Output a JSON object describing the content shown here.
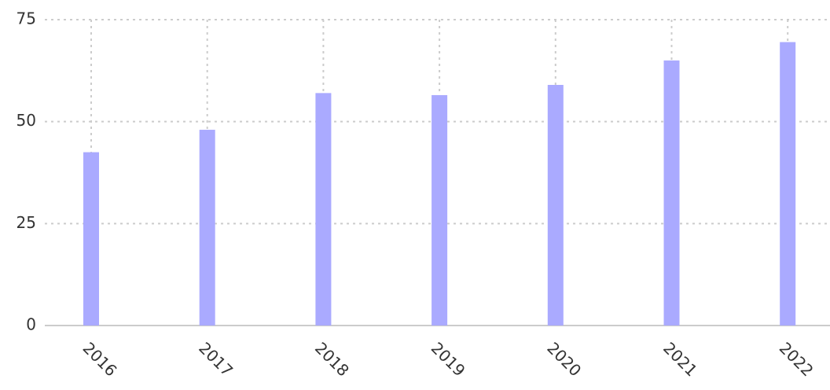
{
  "chart_data": {
    "type": "bar",
    "categories": [
      "2016",
      "2017",
      "2018",
      "2019",
      "2020",
      "2021",
      "2022"
    ],
    "values": [
      42.5,
      48,
      57,
      56.5,
      59,
      65,
      69.5
    ],
    "color": "#aaaaff",
    "ylim": [
      0,
      75
    ],
    "yticks": [
      0,
      25,
      50,
      75
    ],
    "grid": true
  }
}
